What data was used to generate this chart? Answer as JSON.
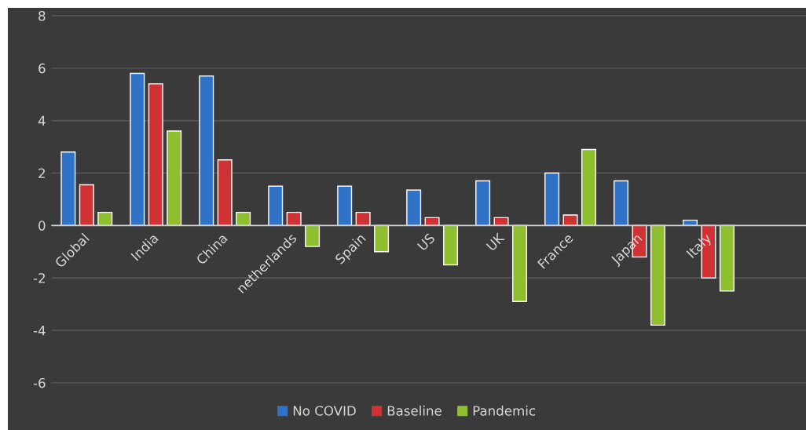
{
  "chart_data": {
    "type": "bar",
    "categories": [
      "Global",
      "India",
      "China",
      "netherlands",
      "Spain",
      "US",
      "UK",
      "France",
      "Japan",
      "Italy"
    ],
    "series": [
      {
        "name": "No COVID",
        "color": "#2f72c8",
        "values": [
          2.8,
          5.8,
          5.7,
          1.5,
          1.5,
          1.35,
          1.7,
          2.0,
          1.7,
          0.2
        ]
      },
      {
        "name": "Baseline",
        "color": "#d03234",
        "values": [
          1.55,
          5.4,
          2.5,
          0.5,
          0.5,
          0.3,
          0.3,
          0.4,
          -1.2,
          -2.0
        ]
      },
      {
        "name": "Pandemic",
        "color": "#8fbf2e",
        "values": [
          0.5,
          3.6,
          0.5,
          -0.8,
          -1.0,
          -1.5,
          -2.9,
          2.9,
          -3.8,
          -2.5
        ]
      }
    ],
    "ylim": [
      -7.8,
      8.3
    ],
    "yticks": [
      -6,
      -4,
      -2,
      0,
      2,
      4,
      6,
      8
    ],
    "grid": "y",
    "legend": "bottom"
  }
}
